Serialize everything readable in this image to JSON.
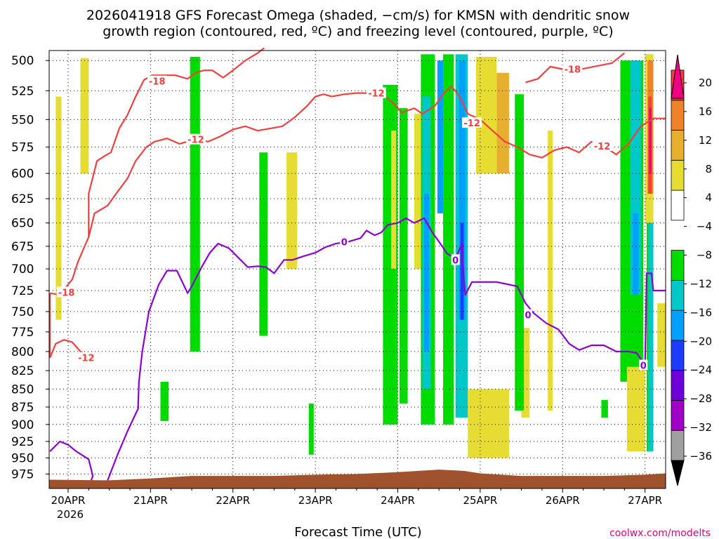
{
  "chart_data": {
    "type": "heatmap",
    "title_line1": "2026041918 GFS Forecast Omega (shaded, −cm/s) for KMSN with dendritic snow",
    "title_line2": "growth region (contoured, red, ºC) and freezing level (contoured, purple, ºC)",
    "xlabel": "Forecast Time (UTC)",
    "ylabel": "",
    "credit": "coolwx.com/modelts",
    "x_ticks": [
      "20APR",
      "21APR",
      "22APR",
      "23APR",
      "24APR",
      "25APR",
      "26APR",
      "27APR"
    ],
    "x_year": "2026",
    "xlim_days": [
      19.77,
      27.25
    ],
    "y_ticks": [
      500,
      525,
      550,
      575,
      600,
      625,
      650,
      675,
      700,
      725,
      750,
      775,
      800,
      825,
      850,
      875,
      900,
      925,
      950,
      975
    ],
    "ylim": [
      492,
      998
    ],
    "y_scale": "log-pressure (inverted)",
    "grid": true,
    "colorbar": {
      "position": "right",
      "levels": [
        -36,
        -32,
        -28,
        -24,
        -20,
        -16,
        -12,
        -8,
        -4,
        4,
        8,
        12,
        16,
        20
      ],
      "labels": [
        "20",
        "16",
        "12",
        "8",
        "4",
        "−4",
        "−8",
        "−12",
        "−16",
        "−20",
        "−24",
        "−28",
        "−32",
        "−36"
      ],
      "colors": [
        "#000000",
        "#a0a0a0",
        "#a000c8",
        "#6e00dc",
        "#1e3cff",
        "#00a0ff",
        "#00c8c8",
        "#00dc00",
        "#ffffff",
        "#e6dc32",
        "#e6af2d",
        "#f08228",
        "#fa3c3c",
        "#f00082"
      ]
    },
    "series": [
      {
        "name": "-18",
        "color": "#ef4040",
        "points": [
          [
            19.78,
            728
          ],
          [
            19.9,
            730
          ],
          [
            20.05,
            712
          ],
          [
            20.12,
            692
          ],
          [
            20.2,
            675
          ],
          [
            20.25,
            665
          ],
          [
            20.25,
            620
          ],
          [
            20.35,
            588
          ],
          [
            20.45,
            583
          ],
          [
            20.52,
            580
          ],
          [
            20.62,
            558
          ],
          [
            20.72,
            546
          ],
          [
            20.82,
            530
          ],
          [
            20.92,
            516
          ],
          [
            21.02,
            512
          ],
          [
            21.15,
            512
          ],
          [
            21.3,
            512
          ],
          [
            21.45,
            515
          ],
          [
            21.55,
            510
          ],
          [
            21.65,
            508
          ],
          [
            21.75,
            508
          ],
          [
            21.88,
            514
          ],
          [
            22.0,
            508
          ],
          [
            22.15,
            500
          ],
          [
            22.3,
            494
          ],
          [
            22.38,
            490
          ]
        ]
      },
      {
        "name": "-18",
        "color": "#ef4040",
        "points": [
          [
            25.55,
            518
          ],
          [
            25.7,
            515
          ],
          [
            25.85,
            505
          ],
          [
            26.0,
            507
          ],
          [
            26.15,
            508
          ],
          [
            26.3,
            506
          ],
          [
            26.45,
            504
          ],
          [
            26.6,
            502
          ],
          [
            26.75,
            494
          ]
        ]
      },
      {
        "name": "-12",
        "color": "#ef4040",
        "points": [
          [
            19.78,
            808
          ],
          [
            19.85,
            790
          ],
          [
            19.95,
            785
          ],
          [
            20.05,
            788
          ],
          [
            20.15,
            800
          ],
          [
            20.25,
            805
          ],
          [
            20.3,
            808
          ]
        ]
      },
      {
        "name": "-12",
        "color": "#ef4040",
        "points": [
          [
            19.78,
            728
          ],
          [
            19.78,
            808
          ]
        ]
      },
      {
        "name": "-12",
        "color": "#ef4040",
        "points": [
          [
            20.25,
            665
          ],
          [
            20.32,
            640
          ],
          [
            20.48,
            632
          ],
          [
            20.6,
            618
          ],
          [
            20.72,
            605
          ],
          [
            20.82,
            588
          ],
          [
            20.95,
            575
          ],
          [
            21.05,
            570
          ],
          [
            21.2,
            567
          ],
          [
            21.35,
            572
          ],
          [
            21.55,
            568
          ],
          [
            21.7,
            570
          ],
          [
            21.85,
            565
          ],
          [
            22.0,
            559
          ],
          [
            22.15,
            556
          ],
          [
            22.3,
            560
          ],
          [
            22.45,
            558
          ],
          [
            22.6,
            556
          ],
          [
            22.75,
            548
          ],
          [
            22.9,
            538
          ],
          [
            23.0,
            530
          ],
          [
            23.1,
            528
          ],
          [
            23.2,
            530
          ],
          [
            23.35,
            528
          ],
          [
            23.5,
            527
          ],
          [
            23.62,
            527
          ],
          [
            23.75,
            527
          ],
          [
            23.85,
            530
          ],
          [
            23.95,
            536
          ],
          [
            24.05,
            544
          ],
          [
            24.2,
            540
          ],
          [
            24.3,
            545
          ],
          [
            24.45,
            538
          ],
          [
            24.55,
            528
          ],
          [
            24.65,
            521
          ],
          [
            24.75,
            530
          ],
          [
            24.85,
            545
          ],
          [
            25.0,
            550
          ],
          [
            25.15,
            560
          ],
          [
            25.3,
            570
          ],
          [
            25.45,
            575
          ],
          [
            25.6,
            582
          ],
          [
            25.75,
            585
          ],
          [
            25.9,
            578
          ],
          [
            26.05,
            575
          ],
          [
            26.2,
            580
          ],
          [
            26.35,
            570
          ],
          [
            26.5,
            574
          ],
          [
            26.65,
            582
          ],
          [
            26.8,
            572
          ],
          [
            26.95,
            556
          ],
          [
            27.1,
            549
          ],
          [
            27.25,
            549
          ]
        ]
      },
      {
        "name": "0",
        "color": "#8c00d2",
        "points": [
          [
            19.78,
            940
          ],
          [
            19.9,
            925
          ],
          [
            20.0,
            930
          ],
          [
            20.1,
            940
          ],
          [
            20.25,
            952
          ],
          [
            20.3,
            978
          ],
          [
            20.28,
            985
          ]
        ]
      },
      {
        "name": "0",
        "color": "#8c00d2",
        "points": [
          [
            20.48,
            985
          ],
          [
            20.6,
            945
          ],
          [
            20.72,
            910
          ],
          [
            20.85,
            877
          ],
          [
            20.85,
            870
          ],
          [
            20.86,
            840
          ],
          [
            20.9,
            800
          ],
          [
            20.98,
            750
          ],
          [
            21.1,
            718
          ],
          [
            21.2,
            702
          ],
          [
            21.32,
            702
          ],
          [
            21.45,
            728
          ],
          [
            21.5,
            720
          ],
          [
            21.62,
            698
          ],
          [
            21.72,
            682
          ],
          [
            21.82,
            672
          ],
          [
            21.95,
            677
          ],
          [
            22.05,
            686
          ],
          [
            22.18,
            698
          ],
          [
            22.3,
            697
          ],
          [
            22.4,
            698
          ],
          [
            22.5,
            705
          ],
          [
            22.62,
            690
          ],
          [
            22.72,
            690
          ],
          [
            22.85,
            686
          ],
          [
            23.0,
            682
          ],
          [
            23.12,
            676
          ],
          [
            23.25,
            672
          ],
          [
            23.4,
            670
          ],
          [
            23.55,
            666
          ],
          [
            23.62,
            658
          ],
          [
            23.72,
            663
          ],
          [
            23.8,
            660
          ],
          [
            23.88,
            652
          ],
          [
            24.0,
            650
          ],
          [
            24.1,
            645
          ],
          [
            24.2,
            650
          ],
          [
            24.32,
            645
          ],
          [
            24.42,
            660
          ],
          [
            24.5,
            670
          ],
          [
            24.6,
            683
          ],
          [
            24.7,
            688
          ],
          [
            24.78,
            672
          ],
          [
            24.8,
            710
          ],
          [
            24.82,
            730
          ],
          [
            24.9,
            715
          ],
          [
            25.0,
            715
          ],
          [
            25.12,
            715
          ],
          [
            25.2,
            715
          ],
          [
            25.35,
            718
          ],
          [
            25.45,
            720
          ],
          [
            25.55,
            740
          ],
          [
            25.65,
            752
          ],
          [
            25.8,
            764
          ],
          [
            25.95,
            772
          ],
          [
            26.08,
            790
          ],
          [
            26.2,
            798
          ],
          [
            26.35,
            792
          ],
          [
            26.5,
            792
          ],
          [
            26.65,
            800
          ],
          [
            26.8,
            800
          ],
          [
            26.9,
            802
          ],
          [
            27.0,
            818
          ],
          [
            27.02,
            705
          ],
          [
            27.08,
            705
          ],
          [
            27.1,
            725
          ],
          [
            27.25,
            725
          ]
        ]
      }
    ],
    "label_positions": [
      {
        "text": "-18",
        "day": 19.98,
        "p": 727
      },
      {
        "text": "-12",
        "day": 20.22,
        "p": 808
      },
      {
        "text": "-18",
        "day": 21.08,
        "p": 517
      },
      {
        "text": "-12",
        "day": 21.55,
        "p": 568
      },
      {
        "text": "0",
        "day": 23.35,
        "p": 670
      },
      {
        "text": "-12",
        "day": 23.74,
        "p": 527
      },
      {
        "text": "0",
        "day": 24.7,
        "p": 690
      },
      {
        "text": "-12",
        "day": 24.9,
        "p": 553
      },
      {
        "text": "0",
        "day": 25.58,
        "p": 754
      },
      {
        "text": "-18",
        "day": 26.12,
        "p": 507
      },
      {
        "text": "-12",
        "day": 26.48,
        "p": 574
      },
      {
        "text": "0",
        "day": 26.98,
        "p": 818
      }
    ],
    "shading": [
      {
        "color": "#00dc00",
        "day0": 21.48,
        "day1": 21.6,
        "p0": 497,
        "p1": 800
      },
      {
        "color": "#00dc00",
        "day0": 22.32,
        "day1": 22.42,
        "p0": 580,
        "p1": 780
      },
      {
        "color": "#00dc00",
        "day0": 21.12,
        "day1": 21.22,
        "p0": 840,
        "p1": 895
      },
      {
        "color": "#00dc00",
        "day0": 22.92,
        "day1": 22.98,
        "p0": 870,
        "p1": 945
      },
      {
        "color": "#e6dc32",
        "day0": 20.15,
        "day1": 20.25,
        "p0": 498,
        "p1": 600
      },
      {
        "color": "#e6dc32",
        "day0": 19.85,
        "day1": 19.92,
        "p0": 530,
        "p1": 760
      },
      {
        "color": "#e6dc32",
        "day0": 22.65,
        "day1": 22.78,
        "p0": 580,
        "p1": 700
      },
      {
        "color": "#00dc00",
        "day0": 23.82,
        "day1": 24.0,
        "p0": 520,
        "p1": 900
      },
      {
        "color": "#00dc00",
        "day0": 24.02,
        "day1": 24.12,
        "p0": 540,
        "p1": 870
      },
      {
        "color": "#e6dc32",
        "day0": 23.92,
        "day1": 23.98,
        "p0": 560,
        "p1": 700
      },
      {
        "color": "#00dc00",
        "day0": 24.28,
        "day1": 24.45,
        "p0": 495,
        "p1": 900
      },
      {
        "color": "#00c8c8",
        "day0": 24.3,
        "day1": 24.4,
        "p0": 530,
        "p1": 850
      },
      {
        "color": "#00a0ff",
        "day0": 24.32,
        "day1": 24.38,
        "p0": 620,
        "p1": 800
      },
      {
        "color": "#e6dc32",
        "day0": 24.2,
        "day1": 24.28,
        "p0": 545,
        "p1": 700
      },
      {
        "color": "#00dc00",
        "day0": 24.55,
        "day1": 24.68,
        "p0": 495,
        "p1": 900
      },
      {
        "color": "#00a0ff",
        "day0": 24.48,
        "day1": 24.55,
        "p0": 500,
        "p1": 640
      },
      {
        "color": "#00c8c8",
        "day0": 24.7,
        "day1": 24.85,
        "p0": 495,
        "p1": 890
      },
      {
        "color": "#00a0ff",
        "day0": 24.74,
        "day1": 24.82,
        "p0": 500,
        "p1": 760
      },
      {
        "color": "#1e3cff",
        "day0": 24.76,
        "day1": 24.8,
        "p0": 650,
        "p1": 760
      },
      {
        "color": "#e6dc32",
        "day0": 24.95,
        "day1": 25.2,
        "p0": 497,
        "p1": 600
      },
      {
        "color": "#e6af2d",
        "day0": 25.2,
        "day1": 25.35,
        "p0": 510,
        "p1": 600
      },
      {
        "color": "#e6dc32",
        "day0": 24.85,
        "day1": 25.35,
        "p0": 850,
        "p1": 950
      },
      {
        "color": "#e6dc32",
        "day0": 25.5,
        "day1": 25.6,
        "p0": 770,
        "p1": 890
      },
      {
        "color": "#00dc00",
        "day0": 25.42,
        "day1": 25.53,
        "p0": 528,
        "p1": 880
      },
      {
        "color": "#e6dc32",
        "day0": 25.82,
        "day1": 25.88,
        "p0": 560,
        "p1": 880
      },
      {
        "color": "#00dc00",
        "day0": 26.47,
        "day1": 26.55,
        "p0": 865,
        "p1": 890
      },
      {
        "color": "#00dc00",
        "day0": 26.7,
        "day1": 26.98,
        "p0": 500,
        "p1": 840
      },
      {
        "color": "#00c8c8",
        "day0": 26.82,
        "day1": 26.95,
        "p0": 500,
        "p1": 730
      },
      {
        "color": "#00a0ff",
        "day0": 26.85,
        "day1": 26.92,
        "p0": 640,
        "p1": 730
      },
      {
        "color": "#00dc00",
        "day0": 27.02,
        "day1": 27.1,
        "p0": 495,
        "p1": 940
      },
      {
        "color": "#00c8c8",
        "day0": 27.04,
        "day1": 27.1,
        "p0": 650,
        "p1": 940
      },
      {
        "color": "#e6dc32",
        "day0": 27.0,
        "day1": 27.1,
        "p0": 495,
        "p1": 650
      },
      {
        "color": "#f08228",
        "day0": 27.03,
        "day1": 27.1,
        "p0": 500,
        "p1": 620
      },
      {
        "color": "#fa3c3c",
        "day0": 27.04,
        "day1": 27.08,
        "p0": 530,
        "p1": 620
      },
      {
        "color": "#f00082",
        "day0": 27.05,
        "day1": 27.08,
        "p0": 540,
        "p1": 600
      },
      {
        "color": "#e6dc32",
        "day0": 26.78,
        "day1": 27.0,
        "p0": 820,
        "p1": 940
      },
      {
        "color": "#e6dc32",
        "day0": 27.15,
        "day1": 27.25,
        "p0": 740,
        "p1": 820
      }
    ],
    "terrain": {
      "color": "#a0522d",
      "points": [
        [
          19.77,
          984
        ],
        [
          20.5,
          985
        ],
        [
          21.0,
          982
        ],
        [
          21.5,
          978
        ],
        [
          22.0,
          978
        ],
        [
          22.5,
          978
        ],
        [
          23.0,
          976
        ],
        [
          23.5,
          975
        ],
        [
          24.0,
          972
        ],
        [
          24.5,
          968
        ],
        [
          24.8,
          970
        ],
        [
          25.0,
          974
        ],
        [
          25.5,
          978
        ],
        [
          26.0,
          978
        ],
        [
          26.5,
          978
        ],
        [
          27.0,
          976
        ],
        [
          27.25,
          974
        ]
      ]
    }
  }
}
